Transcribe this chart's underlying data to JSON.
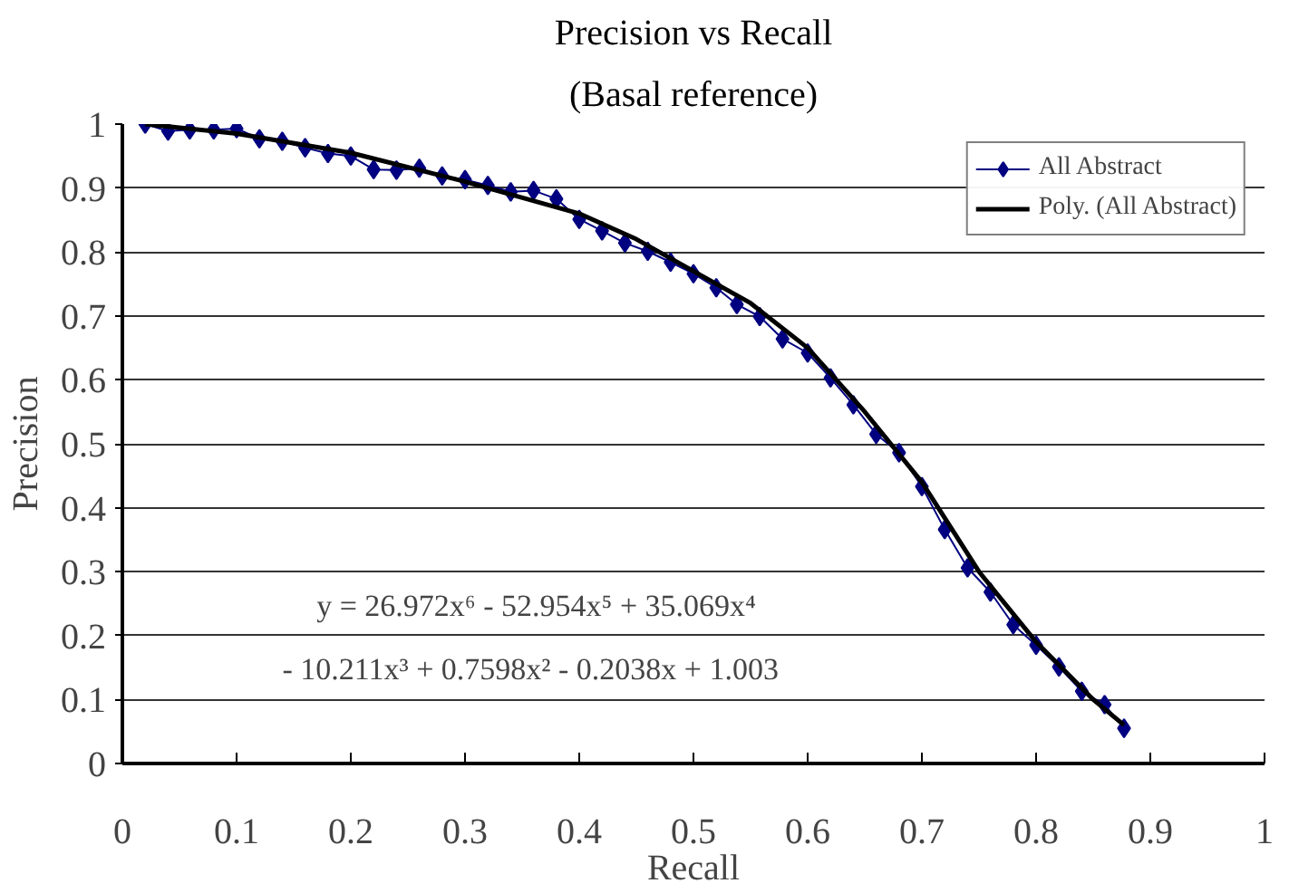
{
  "chart_data": {
    "type": "line",
    "title": "Precision vs Recall",
    "subtitle": "(Basal reference)",
    "xlabel": "Recall",
    "ylabel": "Precision",
    "series": [
      {
        "name": "All Abstract",
        "color": "#000080",
        "marker": "diamond",
        "x": [
          0.02,
          0.04,
          0.059,
          0.08,
          0.1,
          0.12,
          0.14,
          0.16,
          0.18,
          0.2,
          0.22,
          0.24,
          0.26,
          0.28,
          0.3,
          0.32,
          0.34,
          0.36,
          0.38,
          0.4,
          0.42,
          0.44,
          0.46,
          0.48,
          0.5,
          0.52,
          0.538,
          0.558,
          0.578,
          0.6,
          0.62,
          0.64,
          0.66,
          0.68,
          0.7,
          0.72,
          0.74,
          0.76,
          0.78,
          0.8,
          0.82,
          0.84,
          0.86,
          0.877
        ],
        "values": [
          1.0,
          0.989,
          0.991,
          0.991,
          0.993,
          0.977,
          0.973,
          0.963,
          0.954,
          0.95,
          0.929,
          0.928,
          0.931,
          0.919,
          0.913,
          0.904,
          0.894,
          0.896,
          0.883,
          0.851,
          0.833,
          0.814,
          0.801,
          0.784,
          0.766,
          0.744,
          0.718,
          0.699,
          0.664,
          0.642,
          0.603,
          0.561,
          0.515,
          0.486,
          0.433,
          0.366,
          0.306,
          0.268,
          0.217,
          0.185,
          0.151,
          0.113,
          0.092,
          0.055
        ]
      },
      {
        "name": "Poly. (All Abstract)",
        "color": "#000000",
        "marker": "none",
        "x": [
          0.02,
          0.1,
          0.2,
          0.3,
          0.4,
          0.45,
          0.5,
          0.55,
          0.6,
          0.65,
          0.7,
          0.75,
          0.8,
          0.85,
          0.877
        ],
        "values": [
          1.0,
          0.985,
          0.955,
          0.91,
          0.86,
          0.82,
          0.77,
          0.72,
          0.65,
          0.55,
          0.44,
          0.3,
          0.19,
          0.1,
          0.06
        ]
      }
    ],
    "annotations": [
      "y = 26.972x⁶ - 52.954x⁵ + 35.069x⁴",
      "- 10.211x³ + 0.7598x² - 0.2038x + 1.003"
    ],
    "xlim": [
      0,
      1
    ],
    "ylim": [
      0,
      1
    ],
    "xticks": [
      0,
      0.1,
      0.2,
      0.3,
      0.4,
      0.5,
      0.6,
      0.7,
      0.8,
      0.9,
      1
    ],
    "yticks": [
      0,
      0.1,
      0.2,
      0.3,
      0.4,
      0.5,
      0.6,
      0.7,
      0.8,
      0.9,
      1
    ],
    "grid": "y",
    "legend": "top right",
    "line_style": "solid"
  }
}
